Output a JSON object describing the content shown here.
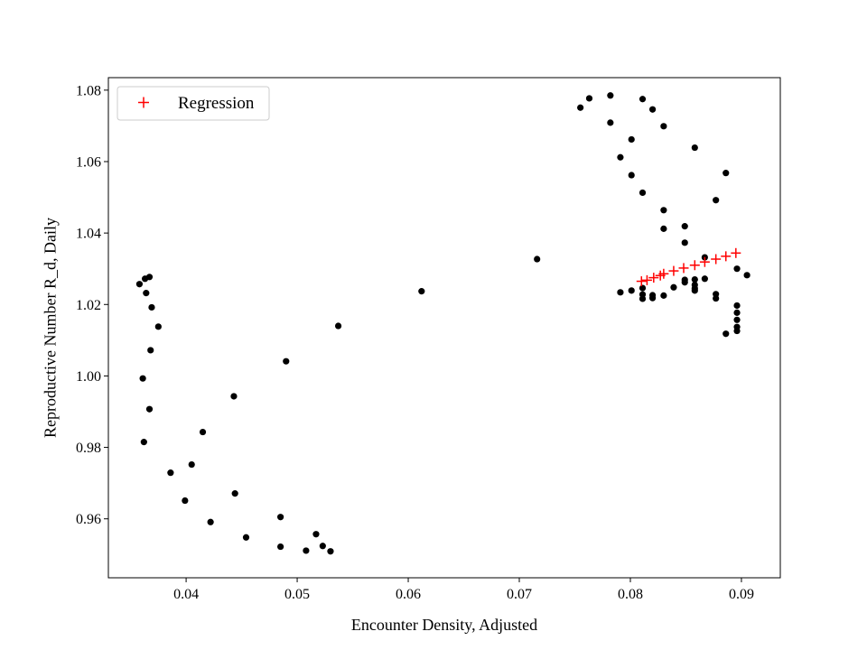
{
  "chart_data": {
    "type": "scatter",
    "title": "",
    "xlabel": "Encounter Density, Adjusted",
    "ylabel": "Reproductive Number R_d, Daily",
    "xlim": [
      0.033,
      0.0935
    ],
    "ylim": [
      0.9435,
      1.0835
    ],
    "xticks": [
      0.04,
      0.05,
      0.06,
      0.07,
      0.08,
      0.09
    ],
    "xtick_labels": [
      "0.04",
      "0.05",
      "0.06",
      "0.07",
      "0.08",
      "0.09"
    ],
    "yticks": [
      0.96,
      0.98,
      1.0,
      1.02,
      1.04,
      1.06,
      1.08
    ],
    "ytick_labels": [
      "0.96",
      "0.98",
      "1.00",
      "1.02",
      "1.04",
      "1.06",
      "1.08"
    ],
    "grid": false,
    "legend_position": "top-left",
    "series": [
      {
        "name": "",
        "marker": "dot",
        "color": "#000000",
        "points": [
          [
            0.0358,
            1.0257
          ],
          [
            0.0363,
            1.0272
          ],
          [
            0.0367,
            1.0277
          ],
          [
            0.0364,
            1.0232
          ],
          [
            0.0369,
            1.0192
          ],
          [
            0.0375,
            1.0138
          ],
          [
            0.0368,
            1.0072
          ],
          [
            0.0361,
            0.9993
          ],
          [
            0.0367,
            0.9907
          ],
          [
            0.0362,
            0.9815
          ],
          [
            0.0386,
            0.9729
          ],
          [
            0.0405,
            0.9752
          ],
          [
            0.0415,
            0.9843
          ],
          [
            0.0399,
            0.9651
          ],
          [
            0.0422,
            0.9591
          ],
          [
            0.0443,
            0.9943
          ],
          [
            0.0444,
            0.9671
          ],
          [
            0.0454,
            0.9548
          ],
          [
            0.0485,
            0.9605
          ],
          [
            0.0485,
            0.9522
          ],
          [
            0.049,
            1.0041
          ],
          [
            0.0508,
            0.9511
          ],
          [
            0.0517,
            0.9557
          ],
          [
            0.0523,
            0.9524
          ],
          [
            0.053,
            0.9509
          ],
          [
            0.0537,
            1.014
          ],
          [
            0.0612,
            1.0237
          ],
          [
            0.0716,
            1.0327
          ],
          [
            0.0755,
            1.0751
          ],
          [
            0.0763,
            1.0777
          ],
          [
            0.0782,
            1.0785
          ],
          [
            0.0782,
            1.0709
          ],
          [
            0.0791,
            1.0612
          ],
          [
            0.0811,
            1.0775
          ],
          [
            0.082,
            1.0746
          ],
          [
            0.083,
            1.0699
          ],
          [
            0.0801,
            1.0662
          ],
          [
            0.0801,
            1.0562
          ],
          [
            0.0811,
            1.0513
          ],
          [
            0.0858,
            1.0639
          ],
          [
            0.0886,
            1.0568
          ],
          [
            0.0877,
            1.0492
          ],
          [
            0.083,
            1.0464
          ],
          [
            0.083,
            1.0412
          ],
          [
            0.0849,
            1.0419
          ],
          [
            0.0849,
            1.0373
          ],
          [
            0.0867,
            1.0332
          ],
          [
            0.0896,
            1.03
          ],
          [
            0.0905,
            1.0282
          ],
          [
            0.0791,
            1.0234
          ],
          [
            0.0801,
            1.0239
          ],
          [
            0.0811,
            1.0246
          ],
          [
            0.0811,
            1.0228
          ],
          [
            0.0811,
            1.0216
          ],
          [
            0.082,
            1.0226
          ],
          [
            0.082,
            1.0218
          ],
          [
            0.083,
            1.0225
          ],
          [
            0.0839,
            1.0248
          ],
          [
            0.0849,
            1.0269
          ],
          [
            0.0849,
            1.0262
          ],
          [
            0.0858,
            1.027
          ],
          [
            0.0858,
            1.0255
          ],
          [
            0.0858,
            1.0245
          ],
          [
            0.0858,
            1.0239
          ],
          [
            0.0867,
            1.0272
          ],
          [
            0.0877,
            1.0229
          ],
          [
            0.0877,
            1.0217
          ],
          [
            0.0896,
            1.0197
          ],
          [
            0.0896,
            1.0177
          ],
          [
            0.0896,
            1.0157
          ],
          [
            0.0896,
            1.0137
          ],
          [
            0.0896,
            1.0126
          ],
          [
            0.0886,
            1.0118
          ]
        ]
      },
      {
        "name": "Regression",
        "marker": "plus",
        "color": "#ff0000",
        "points": [
          [
            0.081,
            1.0265
          ],
          [
            0.0815,
            1.0268
          ],
          [
            0.0821,
            1.0275
          ],
          [
            0.0827,
            1.0281
          ],
          [
            0.083,
            1.0286
          ],
          [
            0.0839,
            1.0294
          ],
          [
            0.0848,
            1.0302
          ],
          [
            0.0858,
            1.031
          ],
          [
            0.0867,
            1.0319
          ],
          [
            0.0877,
            1.0327
          ],
          [
            0.0886,
            1.0335
          ],
          [
            0.0895,
            1.0344
          ]
        ]
      }
    ]
  }
}
